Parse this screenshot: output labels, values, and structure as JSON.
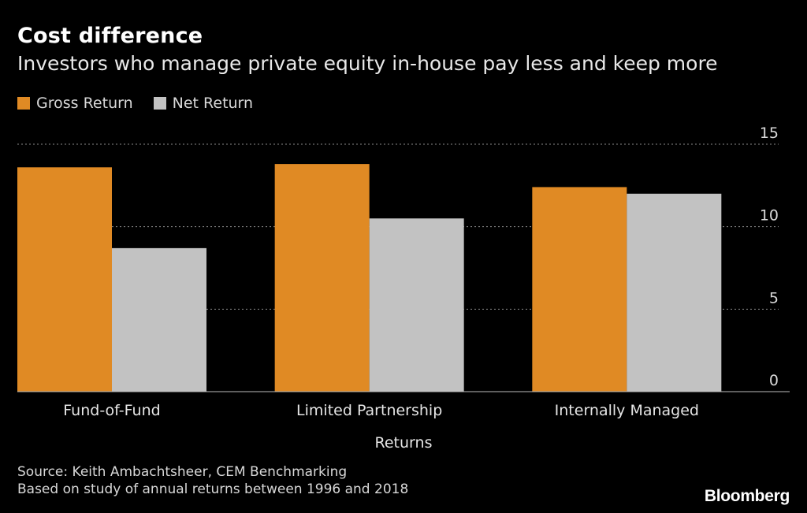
{
  "header": {
    "title": "Cost difference",
    "subtitle": "Investors who manage private equity in-house pay less and keep more"
  },
  "legend": {
    "items": [
      {
        "label": "Gross Return",
        "color": "#e08a24"
      },
      {
        "label": "Net Return",
        "color": "#c2c2c2"
      }
    ]
  },
  "footer": {
    "source": "Source: Keith Ambachtsheer, CEM Benchmarking",
    "note": "Based on study of annual returns between 1996 and 2018",
    "brand": "Bloomberg"
  },
  "chart_data": {
    "type": "bar",
    "title": "Cost difference",
    "subtitle": "Investors who manage private equity in-house pay less and keep more",
    "categories": [
      "Fund-of-Fund",
      "Limited Partnership",
      "Internally Managed"
    ],
    "series": [
      {
        "name": "Gross Return",
        "values": [
          13.6,
          13.8,
          12.4
        ],
        "color": "#e08a24"
      },
      {
        "name": "Net Return",
        "values": [
          8.7,
          10.5,
          12.0
        ],
        "color": "#c2c2c2"
      }
    ],
    "xlabel": "Returns",
    "ylabel": "",
    "ylim": [
      0,
      15
    ],
    "yticks": [
      0,
      5,
      10,
      15
    ],
    "ytick_labels": [
      "0",
      "5",
      "10",
      "15"
    ],
    "grid": true,
    "legend_position": "top-left"
  }
}
